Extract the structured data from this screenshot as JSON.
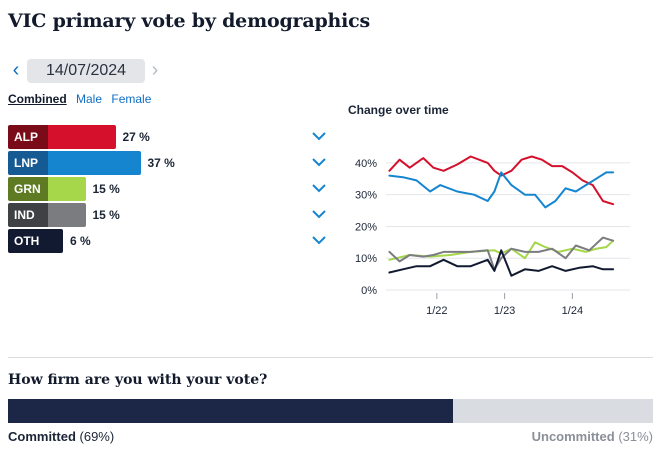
{
  "title": "VIC primary vote by demographics",
  "date_nav": {
    "prev_icon": "chevron-left-icon",
    "date": "14/07/2024",
    "next_icon": "chevron-right-icon"
  },
  "tabs": [
    {
      "label": "Combined",
      "active": true
    },
    {
      "label": "Male",
      "active": false
    },
    {
      "label": "Female",
      "active": false
    }
  ],
  "parties": [
    {
      "key": "ALP",
      "value": 27,
      "pct_label": "27 %",
      "label_color": "#7a0b18",
      "bar_color": "#d5102c"
    },
    {
      "key": "LNP",
      "value": 37,
      "pct_label": "37 %",
      "label_color": "#155a92",
      "bar_color": "#1585d0"
    },
    {
      "key": "GRN",
      "value": 15,
      "pct_label": "15 %",
      "label_color": "#5e7a23",
      "bar_color": "#a6d64a"
    },
    {
      "key": "IND",
      "value": 15,
      "pct_label": "15 %",
      "label_color": "#3f4145",
      "bar_color": "#7a7c80"
    },
    {
      "key": "OTH",
      "value": 6,
      "pct_label": "6 %",
      "label_color": "#111a30",
      "bar_color": "#111a30"
    }
  ],
  "chart_data": {
    "type": "line",
    "title": "Change over time",
    "xlabel": "",
    "ylabel": "",
    "ylim": [
      0,
      45
    ],
    "y_ticks": [
      0,
      10,
      20,
      30,
      40
    ],
    "y_tick_labels": [
      "0%",
      "10%",
      "20%",
      "30%",
      "40%"
    ],
    "xlim": [
      2021.25,
      2024.85
    ],
    "x_ticks": [
      2022.0,
      2023.0,
      2024.0
    ],
    "x_tick_labels": [
      "1/22",
      "1/23",
      "1/24"
    ],
    "grid": true,
    "series": [
      {
        "name": "ALP",
        "color": "#d5102c",
        "x": [
          2021.3,
          2021.45,
          2021.6,
          2021.8,
          2021.95,
          2022.1,
          2022.3,
          2022.5,
          2022.75,
          2022.85,
          2022.95,
          2023.1,
          2023.25,
          2023.4,
          2023.55,
          2023.7,
          2023.85,
          2024.0,
          2024.15,
          2024.3,
          2024.45,
          2024.6
        ],
        "y": [
          37.5,
          41,
          38.5,
          41.5,
          38.5,
          37.5,
          39.5,
          42,
          40,
          37.5,
          36,
          37.5,
          41,
          42,
          41,
          39,
          39,
          37,
          34.5,
          33,
          28,
          27
        ]
      },
      {
        "name": "LNP",
        "color": "#1585d0",
        "x": [
          2021.3,
          2021.5,
          2021.7,
          2021.9,
          2022.05,
          2022.3,
          2022.55,
          2022.75,
          2022.85,
          2022.95,
          2023.1,
          2023.3,
          2023.45,
          2023.6,
          2023.75,
          2023.9,
          2024.05,
          2024.2,
          2024.35,
          2024.5,
          2024.6
        ],
        "y": [
          36,
          35.5,
          34.5,
          31,
          33,
          31,
          30,
          28,
          31,
          37,
          33,
          30,
          30,
          26,
          28,
          32,
          31,
          33,
          35,
          37,
          37
        ]
      },
      {
        "name": "GRN",
        "color": "#a6d64a",
        "x": [
          2021.3,
          2021.6,
          2021.9,
          2022.2,
          2022.5,
          2022.85,
          2022.95,
          2023.1,
          2023.3,
          2023.45,
          2023.6,
          2023.8,
          2024.0,
          2024.2,
          2024.35,
          2024.5,
          2024.6
        ],
        "y": [
          9.5,
          11,
          10.5,
          11,
          12,
          12.5,
          11.5,
          13,
          10,
          15,
          13.5,
          12,
          13,
          12,
          13,
          13.5,
          15.5
        ]
      },
      {
        "name": "IND",
        "color": "#7a7c80",
        "x": [
          2021.3,
          2021.45,
          2021.6,
          2021.8,
          2021.95,
          2022.1,
          2022.3,
          2022.5,
          2022.75,
          2022.85,
          2022.95,
          2023.1,
          2023.3,
          2023.5,
          2023.7,
          2023.9,
          2024.05,
          2024.25,
          2024.45,
          2024.6
        ],
        "y": [
          12,
          9,
          11,
          10.5,
          11,
          12,
          12,
          12,
          12.5,
          6.5,
          10,
          13,
          12,
          12,
          13,
          10,
          14,
          12.5,
          16.5,
          15.5
        ]
      },
      {
        "name": "OTH",
        "color": "#111a30",
        "x": [
          2021.3,
          2021.5,
          2021.7,
          2021.9,
          2022.1,
          2022.3,
          2022.5,
          2022.75,
          2022.85,
          2022.95,
          2023.1,
          2023.3,
          2023.5,
          2023.7,
          2023.9,
          2024.1,
          2024.3,
          2024.45,
          2024.6
        ],
        "y": [
          5.5,
          6.5,
          7.5,
          7.5,
          9.5,
          7.5,
          7.5,
          9.5,
          6,
          12.5,
          4.5,
          6.5,
          6,
          7.5,
          6,
          7,
          7.5,
          6.5,
          6.5
        ]
      }
    ]
  },
  "firmness": {
    "question": "How firm are you with your vote?",
    "committed_label": "Committed",
    "committed_pct_text": "(69%)",
    "committed_value": 69,
    "uncommitted_label": "Uncommitted",
    "uncommitted_pct_text": "(31%)",
    "uncommitted_value": 31
  }
}
